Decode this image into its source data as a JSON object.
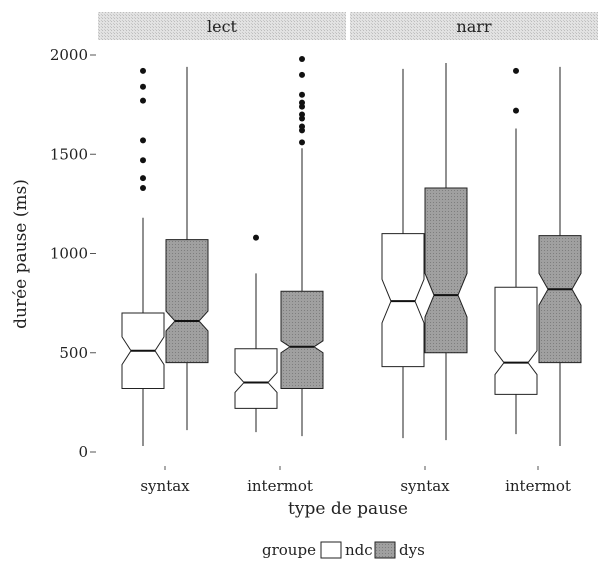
{
  "chart_data": {
    "type": "boxplot",
    "title": "",
    "xlabel": "type de pause",
    "ylabel": "durée pause (ms)",
    "ylim": [
      0,
      2000
    ],
    "yticks": [
      0,
      500,
      1000,
      1500,
      2000
    ],
    "facets": [
      "lect",
      "narr"
    ],
    "categories": [
      "syntax",
      "intermot"
    ],
    "legend": {
      "title": "groupe",
      "position": "bottom",
      "entries": [
        {
          "label": "ndc",
          "color": "#ffffff"
        },
        {
          "label": "dys",
          "color": "#9a9a9a"
        }
      ]
    },
    "boxes": [
      {
        "facet": "lect",
        "category": "syntax",
        "group": "ndc",
        "whisker_low": 30,
        "q1": 320,
        "median": 510,
        "q3": 700,
        "whisker_high": 1180,
        "notch": [
          440,
          580
        ],
        "outliers": [
          1330,
          1380,
          1470,
          1570,
          1770,
          1840,
          1920
        ]
      },
      {
        "facet": "lect",
        "category": "syntax",
        "group": "dys",
        "whisker_low": 110,
        "q1": 450,
        "median": 660,
        "q3": 1070,
        "whisker_high": 1940,
        "notch": [
          610,
          710
        ],
        "outliers": []
      },
      {
        "facet": "lect",
        "category": "intermot",
        "group": "ndc",
        "whisker_low": 100,
        "q1": 220,
        "median": 350,
        "q3": 520,
        "whisker_high": 900,
        "notch": [
          300,
          400
        ],
        "outliers": [
          1080
        ]
      },
      {
        "facet": "lect",
        "category": "intermot",
        "group": "dys",
        "whisker_low": 80,
        "q1": 320,
        "median": 530,
        "q3": 810,
        "whisker_high": 1530,
        "notch": [
          500,
          560
        ],
        "outliers": [
          1560,
          1620,
          1640,
          1680,
          1700,
          1740,
          1760,
          1800,
          1900,
          1980
        ]
      },
      {
        "facet": "narr",
        "category": "syntax",
        "group": "ndc",
        "whisker_low": 70,
        "q1": 430,
        "median": 760,
        "q3": 1100,
        "whisker_high": 1930,
        "notch": [
          650,
          870
        ],
        "outliers": []
      },
      {
        "facet": "narr",
        "category": "syntax",
        "group": "dys",
        "whisker_low": 60,
        "q1": 500,
        "median": 790,
        "q3": 1330,
        "whisker_high": 1960,
        "notch": [
          680,
          900
        ],
        "outliers": []
      },
      {
        "facet": "narr",
        "category": "intermot",
        "group": "ndc",
        "whisker_low": 90,
        "q1": 290,
        "median": 450,
        "q3": 830,
        "whisker_high": 1630,
        "notch": [
          390,
          510
        ],
        "outliers": [
          1720,
          1920
        ]
      },
      {
        "facet": "narr",
        "category": "intermot",
        "group": "dys",
        "whisker_low": 30,
        "q1": 450,
        "median": 820,
        "q3": 1090,
        "whisker_high": 1940,
        "notch": [
          740,
          900
        ],
        "outliers": []
      }
    ]
  }
}
